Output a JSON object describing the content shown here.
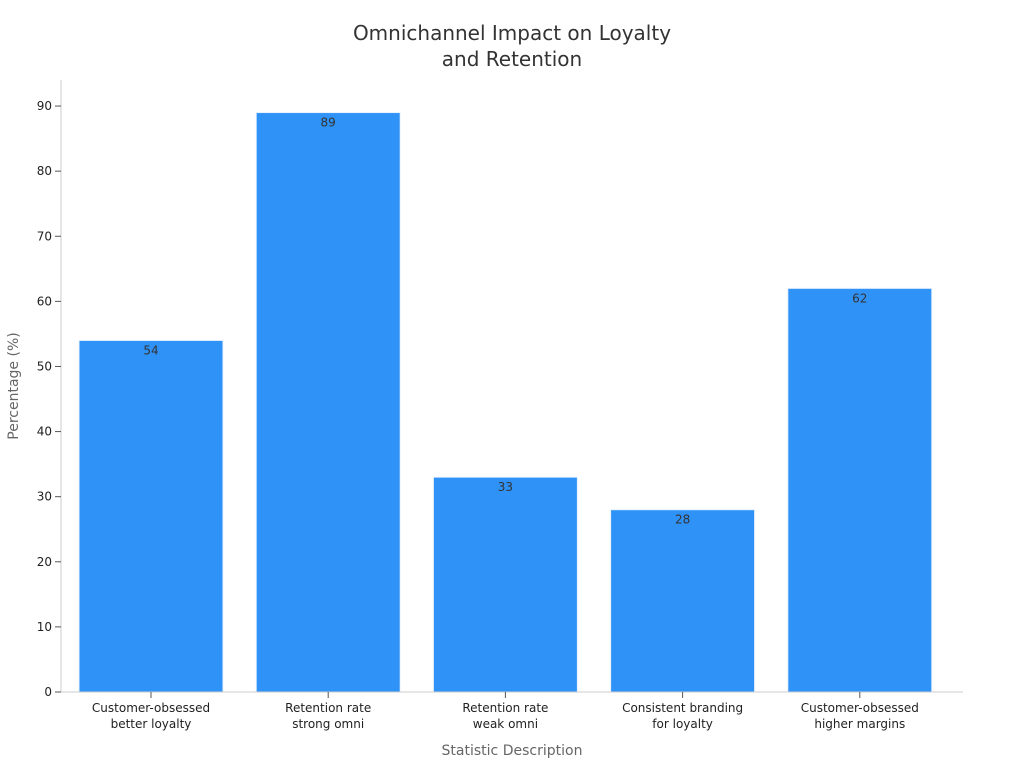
{
  "chart_data": {
    "type": "bar",
    "title": [
      "Omnichannel Impact on Loyalty",
      "and Retention"
    ],
    "xlabel": "Statistic Description",
    "ylabel": "Percentage (%)",
    "categories": [
      [
        "Customer-obsessed",
        "better loyalty"
      ],
      [
        "Retention rate",
        "strong omni"
      ],
      [
        "Retention rate",
        "weak omni"
      ],
      [
        "Consistent branding",
        "for loyalty"
      ],
      [
        "Customer-obsessed",
        "higher margins"
      ]
    ],
    "values": [
      54,
      89,
      33,
      28,
      62
    ],
    "ylim": [
      0,
      94
    ],
    "yticks": [
      0,
      10,
      20,
      30,
      40,
      50,
      60,
      70,
      80,
      90
    ],
    "grid": false,
    "bar_color": "#2f92f7"
  }
}
